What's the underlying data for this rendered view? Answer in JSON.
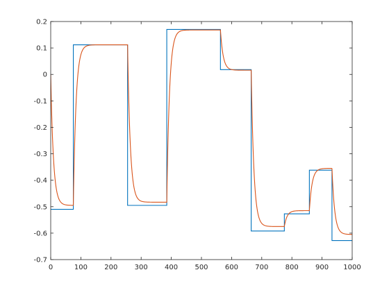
{
  "chart_data": {
    "type": "line",
    "title": "",
    "xlabel": "",
    "ylabel": "",
    "xlim": [
      0,
      1000
    ],
    "ylim": [
      -0.7,
      0.2
    ],
    "xticks": [
      "0",
      "100",
      "200",
      "300",
      "400",
      "500",
      "600",
      "700",
      "800",
      "900",
      "1000"
    ],
    "yticks": [
      "0.2",
      "0.1",
      "0",
      "-0.1",
      "-0.2",
      "-0.3",
      "-0.4",
      "-0.5",
      "-0.6",
      "-0.7"
    ],
    "grid": false,
    "legend": "none",
    "series": [
      {
        "color": "#0072BD",
        "style": "step",
        "x": [
          0,
          75,
          75,
          255,
          255,
          385,
          385,
          563,
          563,
          665,
          665,
          775,
          775,
          858,
          858,
          933,
          933,
          1000
        ],
        "y": [
          -0.51,
          -0.51,
          0.112,
          0.112,
          -0.495,
          -0.495,
          0.17,
          0.17,
          0.018,
          0.018,
          -0.592,
          -0.592,
          -0.527,
          -0.527,
          -0.362,
          -0.362,
          -0.628,
          -0.628
        ]
      },
      {
        "color": "#D95319",
        "style": "first-order-response",
        "segments": [
          {
            "start": 0,
            "end": 75,
            "from": 0.0,
            "to": -0.495
          },
          {
            "start": 75,
            "end": 255,
            "from": -0.495,
            "to": 0.112
          },
          {
            "start": 255,
            "end": 385,
            "from": 0.112,
            "to": -0.483
          },
          {
            "start": 385,
            "end": 563,
            "from": -0.483,
            "to": 0.168
          },
          {
            "start": 563,
            "end": 665,
            "from": 0.168,
            "to": 0.016
          },
          {
            "start": 665,
            "end": 775,
            "from": 0.016,
            "to": -0.575
          },
          {
            "start": 775,
            "end": 858,
            "from": -0.575,
            "to": -0.515
          },
          {
            "start": 858,
            "end": 933,
            "from": -0.515,
            "to": -0.355
          },
          {
            "start": 933,
            "end": 1000,
            "from": -0.355,
            "to": -0.605
          }
        ],
        "time_constant": 9
      }
    ]
  }
}
